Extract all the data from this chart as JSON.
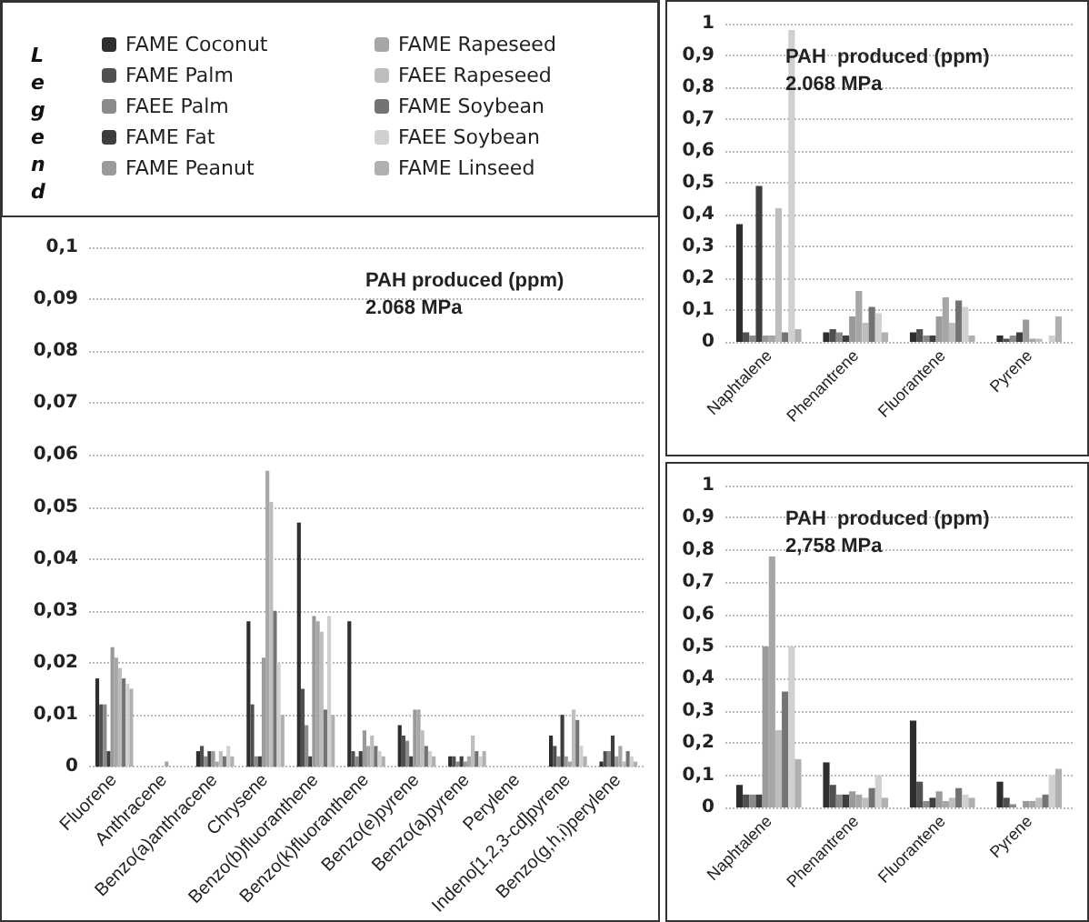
{
  "chart_data": [
    {
      "type": "bar",
      "title": "PAH produced (ppm)",
      "subtitle": "2.068 MPa",
      "legend": "top",
      "legend_title": "Legend",
      "grid": "y",
      "categories": [
        "Fluorene",
        "Anthracene",
        "Benzo(a)anthracene",
        "Chrysene",
        "Benzo(b)fluoranthene",
        "Benzo(k)fluoranthene",
        "Benzo(e)pyrene",
        "Benzo(a)pyrene",
        "Perylene",
        "Indeno[1,2,3-cd]pyrene",
        "Benzo(g,h,i)perylene"
      ],
      "ylim": [
        0,
        0.1
      ],
      "yticks": [
        {
          "value": 0,
          "label": "0"
        },
        {
          "value": 0.01,
          "label": "0,01"
        },
        {
          "value": 0.02,
          "label": "0,02"
        },
        {
          "value": 0.03,
          "label": "0,03"
        },
        {
          "value": 0.04,
          "label": "0,04"
        },
        {
          "value": 0.05,
          "label": "0,05"
        },
        {
          "value": 0.06,
          "label": "0,06"
        },
        {
          "value": 0.07,
          "label": "0,07"
        },
        {
          "value": 0.08,
          "label": "0,08"
        },
        {
          "value": 0.09,
          "label": "0,09"
        },
        {
          "value": 0.1,
          "label": "0,1"
        }
      ],
      "series": [
        {
          "name": "FAME Coconut",
          "color": "#2e2e2e",
          "values": [
            0.017,
            0,
            0.003,
            0.028,
            0.047,
            0.028,
            0.008,
            0.002,
            0,
            0.006,
            0.001
          ]
        },
        {
          "name": "FAME Palm",
          "color": "#505050",
          "values": [
            0.012,
            0,
            0.004,
            0.012,
            0.015,
            0.003,
            0.006,
            0.002,
            0,
            0.004,
            0.003
          ]
        },
        {
          "name": "FAEE Palm",
          "color": "#8a8a8a",
          "values": [
            0.012,
            0,
            0.002,
            0.002,
            0.008,
            0.002,
            0.005,
            0.001,
            0,
            0.002,
            0.003
          ]
        },
        {
          "name": "FAME Fat",
          "color": "#3e3e3e",
          "values": [
            0.003,
            0,
            0.003,
            0.002,
            0.002,
            0.003,
            0.002,
            0.002,
            0,
            0.01,
            0.006
          ]
        },
        {
          "name": "FAME Peanut",
          "color": "#9a9a9a",
          "values": [
            0.023,
            0,
            0.003,
            0.021,
            0.029,
            0.007,
            0.011,
            0.001,
            0,
            0.002,
            0.002
          ]
        },
        {
          "name": "FAME Rapeseed",
          "color": "#a6a6a6",
          "values": [
            0.021,
            0.001,
            0.001,
            0.057,
            0.028,
            0.004,
            0.011,
            0.002,
            0,
            0.001,
            0.004
          ]
        },
        {
          "name": "FAEE Rapeseed",
          "color": "#bdbdbd",
          "values": [
            0.019,
            0,
            0.003,
            0.051,
            0.026,
            0.006,
            0.007,
            0.006,
            0,
            0.011,
            0.001
          ]
        },
        {
          "name": "FAME Soybean",
          "color": "#737373",
          "values": [
            0.017,
            0,
            0.002,
            0.03,
            0.011,
            0.004,
            0.004,
            0.003,
            0,
            0.009,
            0.003
          ]
        },
        {
          "name": "FAEE Soybean",
          "color": "#d0d0d0",
          "values": [
            0.016,
            0,
            0.004,
            0.02,
            0.029,
            0.003,
            0.003,
            0.002,
            0,
            0.004,
            0.002
          ]
        },
        {
          "name": "FAME Linseed",
          "color": "#b0b0b0",
          "values": [
            0.015,
            0,
            0.002,
            0.01,
            0.01,
            0.002,
            0.002,
            0.003,
            0,
            0.002,
            0.001
          ]
        }
      ]
    },
    {
      "type": "bar",
      "title": "PAH  produced (ppm)",
      "subtitle": "2.068 MPa",
      "grid": "y",
      "categories": [
        "Naphtalene",
        "Phenantrene",
        "Fluorantene",
        "Pyrene"
      ],
      "ylim": [
        0,
        1
      ],
      "yticks": [
        {
          "value": 0,
          "label": "0"
        },
        {
          "value": 0.1,
          "label": "0,1"
        },
        {
          "value": 0.2,
          "label": "0,2"
        },
        {
          "value": 0.3,
          "label": "0,3"
        },
        {
          "value": 0.4,
          "label": "0,4"
        },
        {
          "value": 0.5,
          "label": "0,5"
        },
        {
          "value": 0.6,
          "label": "0,6"
        },
        {
          "value": 0.7,
          "label": "0,7"
        },
        {
          "value": 0.8,
          "label": "0,8"
        },
        {
          "value": 0.9,
          "label": "0,9"
        },
        {
          "value": 1,
          "label": "1"
        }
      ],
      "series": [
        {
          "color": "#2e2e2e",
          "values": [
            0.37,
            0.03,
            0.03,
            0.02
          ]
        },
        {
          "color": "#505050",
          "values": [
            0.03,
            0.04,
            0.04,
            0.01
          ]
        },
        {
          "color": "#8a8a8a",
          "values": [
            0.02,
            0.03,
            0.02,
            0.02
          ]
        },
        {
          "color": "#3e3e3e",
          "values": [
            0.49,
            0.02,
            0.02,
            0.03
          ]
        },
        {
          "color": "#9a9a9a",
          "values": [
            0.02,
            0.08,
            0.08,
            0.07
          ]
        },
        {
          "color": "#a6a6a6",
          "values": [
            0.02,
            0.16,
            0.14,
            0.01
          ]
        },
        {
          "color": "#bdbdbd",
          "values": [
            0.42,
            0.06,
            0.06,
            0.01
          ]
        },
        {
          "color": "#737373",
          "values": [
            0.03,
            0.11,
            0.13,
            0
          ]
        },
        {
          "color": "#d0d0d0",
          "values": [
            0.98,
            0.09,
            0.11,
            0.02
          ]
        },
        {
          "color": "#b0b0b0",
          "values": [
            0.04,
            0.03,
            0.02,
            0.08
          ]
        }
      ]
    },
    {
      "type": "bar",
      "title": "PAH  produced (ppm)",
      "subtitle": "2,758 MPa",
      "grid": "y",
      "categories": [
        "Naphtalene",
        "Phenantrene",
        "Fluorantene",
        "Pyrene"
      ],
      "ylim": [
        0,
        1
      ],
      "yticks": [
        {
          "value": 0,
          "label": "0"
        },
        {
          "value": 0.1,
          "label": "0,1"
        },
        {
          "value": 0.2,
          "label": "0,2"
        },
        {
          "value": 0.3,
          "label": "0,3"
        },
        {
          "value": 0.4,
          "label": "0,4"
        },
        {
          "value": 0.5,
          "label": "0,5"
        },
        {
          "value": 0.6,
          "label": "0,6"
        },
        {
          "value": 0.7,
          "label": "0,7"
        },
        {
          "value": 0.8,
          "label": "0,8"
        },
        {
          "value": 0.9,
          "label": "0,9"
        },
        {
          "value": 1,
          "label": "1"
        }
      ],
      "series": [
        {
          "color": "#2e2e2e",
          "values": [
            0.07,
            0.14,
            0.27,
            0.08
          ]
        },
        {
          "color": "#505050",
          "values": [
            0.04,
            0.07,
            0.08,
            0.03
          ]
        },
        {
          "color": "#8a8a8a",
          "values": [
            0.04,
            0.04,
            0.02,
            0.01
          ]
        },
        {
          "color": "#3e3e3e",
          "values": [
            0.04,
            0.04,
            0.03,
            0
          ]
        },
        {
          "color": "#9a9a9a",
          "values": [
            0.5,
            0.05,
            0.05,
            0.02
          ]
        },
        {
          "color": "#a6a6a6",
          "values": [
            0.78,
            0.04,
            0.02,
            0.02
          ]
        },
        {
          "color": "#bdbdbd",
          "values": [
            0.24,
            0.03,
            0.03,
            0.03
          ]
        },
        {
          "color": "#737373",
          "values": [
            0.36,
            0.06,
            0.06,
            0.04
          ]
        },
        {
          "color": "#d0d0d0",
          "values": [
            0.5,
            0.1,
            0.04,
            0.1
          ]
        },
        {
          "color": "#b0b0b0",
          "values": [
            0.15,
            0.03,
            0.03,
            0.12
          ]
        }
      ]
    }
  ]
}
